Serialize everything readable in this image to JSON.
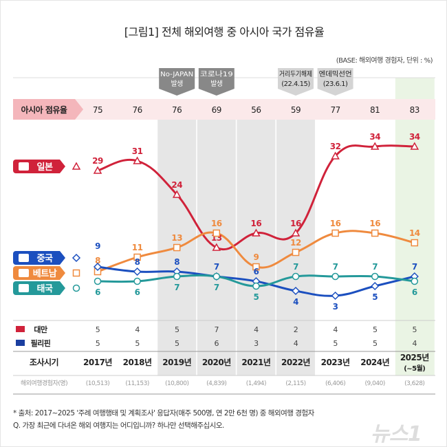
{
  "title": "[그림1] 전체 해외여행 중 아시아 국가 점유율",
  "base_note": "(BASE: 해외여행 경험자, 단위 : %)",
  "events": [
    {
      "label1": "No-JAPAN",
      "label2": "발생",
      "col": 2
    },
    {
      "label1": "코로나19",
      "label2": "발생",
      "col": 3
    },
    {
      "label1": "거리두기해제",
      "label2": "(22.4.15)",
      "col": 5
    },
    {
      "label1": "엔데믹선언",
      "label2": "(23.6.1)",
      "col": 6
    }
  ],
  "share_label": "아시아 점유율",
  "share_values": [
    "75",
    "76",
    "76",
    "69",
    "56",
    "59",
    "77",
    "81",
    "83"
  ],
  "chart_data": {
    "type": "line",
    "categories": [
      "2017년",
      "2018년",
      "2019년",
      "2020년",
      "2021년",
      "2022년",
      "2023년",
      "2024년",
      "2025년 (~5월)"
    ],
    "series": [
      {
        "name": "일본",
        "color": "#d0223a",
        "marker": "triangle",
        "values": [
          29,
          31,
          24,
          13,
          16,
          16,
          32,
          34,
          34
        ],
        "label_pos": "above"
      },
      {
        "name": "베트남",
        "color": "#ef8a3e",
        "marker": "square",
        "values": [
          8,
          11,
          13,
          16,
          9,
          12,
          16,
          16,
          14
        ],
        "label_pos": "above"
      },
      {
        "name": "중국",
        "color": "#1b4fbf",
        "marker": "diamond",
        "values": [
          9,
          8,
          8,
          7,
          6,
          4,
          3,
          5,
          7
        ],
        "label_pos": "above"
      },
      {
        "name": "태국",
        "color": "#24999a",
        "marker": "circle",
        "values": [
          6,
          6,
          7,
          7,
          5,
          7,
          7,
          7,
          6
        ],
        "label_pos": "below"
      }
    ]
  },
  "legend_order": [
    0,
    2,
    1,
    3
  ],
  "extra_rows": [
    {
      "name": "대만",
      "flag": "taiwan-flag",
      "values": [
        "5",
        "4",
        "5",
        "7",
        "4",
        "2",
        "4",
        "5",
        "5"
      ]
    },
    {
      "name": "필리핀",
      "flag": "philippines-flag",
      "values": [
        "5",
        "5",
        "5",
        "6",
        "3",
        "4",
        "5",
        "5",
        "4"
      ]
    }
  ],
  "period_label": "조사시기",
  "period_values": [
    "2017년",
    "2018년",
    "2019년",
    "2020년",
    "2021년",
    "2022년",
    "2023년",
    "2024년",
    "2025년",
    "(~5월)"
  ],
  "respondents_label": "해외여행경험자(명)",
  "respondents": [
    "(10,513)",
    "(11,153)",
    "(10,800)",
    "(4,839)",
    "(1,494)",
    "(2,115)",
    "(6,406)",
    "(9,040)",
    "(3,628)"
  ],
  "footnote1": "* 출처: 2017~2025 '주례 여행행태 및 계획조사' 응답자(매주 500명, 연 2만 6천 명) 중 해외여행 경험자",
  "footnote2": "Q. 가장 최근에 다녀온 해외 여행지는 어디입니까? 하나만 선택해주십시오.",
  "watermark": "뉴스1"
}
